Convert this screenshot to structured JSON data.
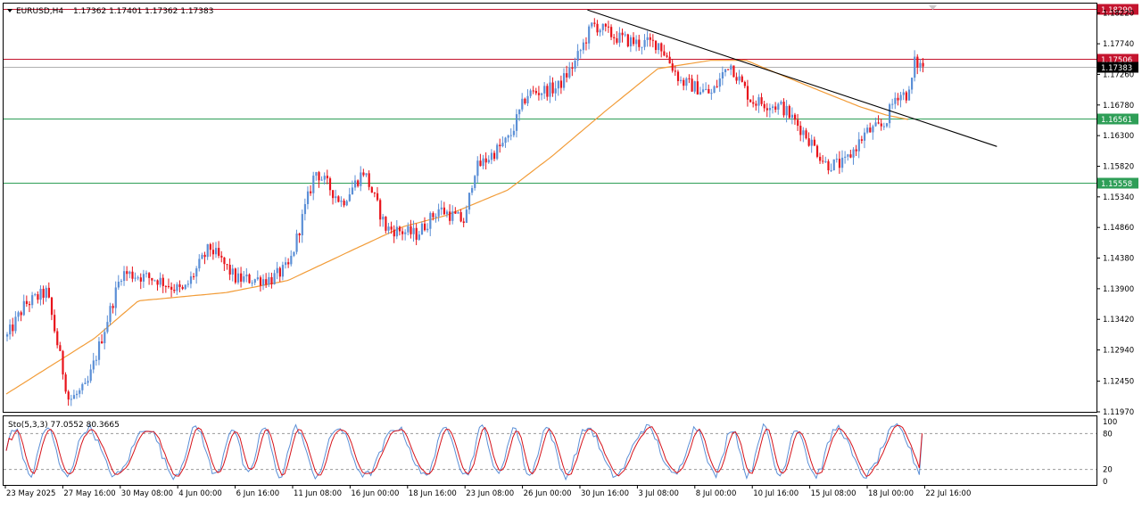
{
  "header": {
    "symbol": "EURUSD,H4",
    "ohlc": "1.17362 1.17401 1.17362 1.17383"
  },
  "colors": {
    "bull": "#5b8fd6",
    "bear": "#e8131b",
    "ma": "#f29c38",
    "resistance": "#c4142e",
    "support": "#2e9e57",
    "current": "#b0b0b0",
    "trendline": "#000000",
    "stoch_main": "#5b8fd6",
    "stoch_signal": "#d6131b",
    "grid": "#9a9a9a"
  },
  "chart_data": [
    {
      "type": "candlestick",
      "ylim": [
        1.1197,
        1.1837
      ],
      "yticks": [
        "1.18220",
        "1.17740",
        "1.17260",
        "1.16780",
        "1.16300",
        "1.15820",
        "1.15340",
        "1.14860",
        "1.14380",
        "1.13900",
        "1.13420",
        "1.12940",
        "1.12450",
        "1.11970"
      ],
      "x_labels": [
        "23 May 2025",
        "27 May 16:00",
        "30 May 08:00",
        "4 Jun 00:00",
        "6 Jun 16:00",
        "11 Jun 08:00",
        "16 Jun 00:00",
        "18 Jun 16:00",
        "23 Jun 08:00",
        "26 Jun 00:00",
        "30 Jun 16:00",
        "3 Jul 08:00",
        "8 Jul 00:00",
        "10 Jul 16:00",
        "15 Jul 08:00",
        "18 Jul 00:00",
        "22 Jul 16:00"
      ],
      "levels": [
        {
          "label": "1.18290",
          "value": 1.1829,
          "kind": "resistance"
        },
        {
          "label": "1.17506",
          "value": 1.17506,
          "kind": "resistance"
        },
        {
          "label": "1.17383",
          "value": 1.17383,
          "kind": "current"
        },
        {
          "label": "1.16561",
          "value": 1.16561,
          "kind": "support"
        },
        {
          "label": "1.15558",
          "value": 1.15558,
          "kind": "support"
        }
      ],
      "trendline": [
        {
          "bar": 0.66,
          "price": 1.1827
        },
        {
          "bar": 1.125,
          "price": 1.1613
        }
      ],
      "anchors": [
        [
          0,
          1.1315
        ],
        [
          0.02,
          1.1365
        ],
        [
          0.045,
          1.1385
        ],
        [
          0.07,
          1.1215
        ],
        [
          0.09,
          1.1235
        ],
        [
          0.13,
          1.1415
        ],
        [
          0.17,
          1.1405
        ],
        [
          0.2,
          1.1385
        ],
        [
          0.23,
          1.1455
        ],
        [
          0.26,
          1.1405
        ],
        [
          0.3,
          1.1405
        ],
        [
          0.32,
          1.1425
        ],
        [
          0.35,
          1.1575
        ],
        [
          0.38,
          1.1525
        ],
        [
          0.405,
          1.1575
        ],
        [
          0.43,
          1.1485
        ],
        [
          0.465,
          1.1475
        ],
        [
          0.49,
          1.1515
        ],
        [
          0.52,
          1.1495
        ],
        [
          0.53,
          1.1575
        ],
        [
          0.57,
          1.1625
        ],
        [
          0.59,
          1.1695
        ],
        [
          0.625,
          1.1705
        ],
        [
          0.645,
          1.1745
        ],
        [
          0.665,
          1.1805
        ],
        [
          0.69,
          1.1785
        ],
        [
          0.715,
          1.1775
        ],
        [
          0.74,
          1.1775
        ],
        [
          0.765,
          1.1715
        ],
        [
          0.8,
          1.1695
        ],
        [
          0.82,
          1.1745
        ],
        [
          0.845,
          1.1685
        ],
        [
          0.88,
          1.1675
        ],
        [
          0.905,
          1.1635
        ],
        [
          0.93,
          1.1585
        ],
        [
          0.95,
          1.1585
        ],
        [
          0.975,
          1.1635
        ],
        [
          0.995,
          1.1645
        ],
        [
          1.01,
          1.1695
        ],
        [
          1.025,
          1.1695
        ],
        [
          1.03,
          1.1745
        ],
        [
          1.04,
          1.1738
        ]
      ],
      "ma_anchors": [
        [
          0,
          1.1225
        ],
        [
          0.1,
          1.1312
        ],
        [
          0.15,
          1.1371
        ],
        [
          0.25,
          1.1384
        ],
        [
          0.32,
          1.1403
        ],
        [
          0.4,
          1.1455
        ],
        [
          0.45,
          1.1487
        ],
        [
          0.5,
          1.1505
        ],
        [
          0.57,
          1.1545
        ],
        [
          0.62,
          1.1598
        ],
        [
          0.68,
          1.1668
        ],
        [
          0.74,
          1.1735
        ],
        [
          0.8,
          1.1748
        ],
        [
          0.84,
          1.1748
        ],
        [
          0.88,
          1.1725
        ],
        [
          0.93,
          1.1697
        ],
        [
          0.97,
          1.1675
        ],
        [
          1.0,
          1.1662
        ],
        [
          1.025,
          1.1655
        ]
      ]
    },
    {
      "type": "line",
      "label": "Sto(5,3,3) 77.0552 80.3665",
      "ylim": [
        0,
        100
      ],
      "yticks": [
        "100",
        "80",
        "20",
        "0"
      ],
      "levels": [
        80,
        20
      ],
      "series": [
        {
          "kind": "main",
          "last": 77.0552
        },
        {
          "kind": "signal",
          "last": 80.3665
        }
      ]
    }
  ]
}
